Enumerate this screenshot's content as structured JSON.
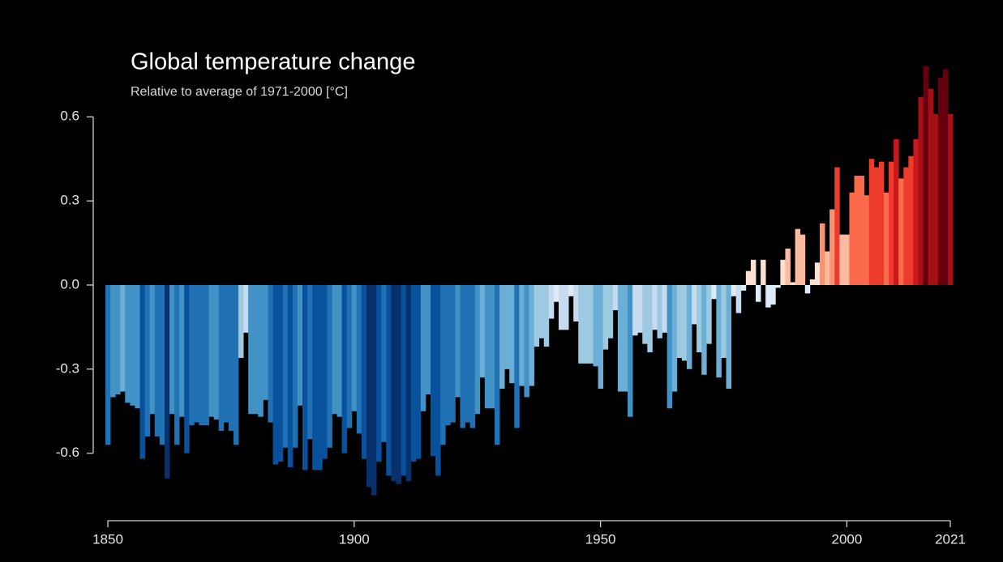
{
  "chart_data": {
    "type": "bar",
    "title": "Global temperature change",
    "subtitle": "Relative to average of 1971-2000  [°C]",
    "x": [
      1850,
      1851,
      1852,
      1853,
      1854,
      1855,
      1856,
      1857,
      1858,
      1859,
      1860,
      1861,
      1862,
      1863,
      1864,
      1865,
      1866,
      1867,
      1868,
      1869,
      1870,
      1871,
      1872,
      1873,
      1874,
      1875,
      1876,
      1877,
      1878,
      1879,
      1880,
      1881,
      1882,
      1883,
      1884,
      1885,
      1886,
      1887,
      1888,
      1889,
      1890,
      1891,
      1892,
      1893,
      1894,
      1895,
      1896,
      1897,
      1898,
      1899,
      1900,
      1901,
      1902,
      1903,
      1904,
      1905,
      1906,
      1907,
      1908,
      1909,
      1910,
      1911,
      1912,
      1913,
      1914,
      1915,
      1916,
      1917,
      1918,
      1919,
      1920,
      1921,
      1922,
      1923,
      1924,
      1925,
      1926,
      1927,
      1928,
      1929,
      1930,
      1931,
      1932,
      1933,
      1934,
      1935,
      1936,
      1937,
      1938,
      1939,
      1940,
      1941,
      1942,
      1943,
      1944,
      1945,
      1946,
      1947,
      1948,
      1949,
      1950,
      1951,
      1952,
      1953,
      1954,
      1955,
      1956,
      1957,
      1958,
      1959,
      1960,
      1961,
      1962,
      1963,
      1964,
      1965,
      1966,
      1967,
      1968,
      1969,
      1970,
      1971,
      1972,
      1973,
      1974,
      1975,
      1976,
      1977,
      1978,
      1979,
      1980,
      1981,
      1982,
      1983,
      1984,
      1985,
      1986,
      1987,
      1988,
      1989,
      1990,
      1991,
      1992,
      1993,
      1994,
      1995,
      1996,
      1997,
      1998,
      1999,
      2000,
      2001,
      2002,
      2003,
      2004,
      2005,
      2006,
      2007,
      2008,
      2009,
      2010,
      2011,
      2012,
      2013,
      2014,
      2015,
      2016,
      2017,
      2018,
      2019,
      2020,
      2021
    ],
    "values": [
      -0.57,
      -0.4,
      -0.39,
      -0.38,
      -0.42,
      -0.43,
      -0.44,
      -0.62,
      -0.54,
      -0.46,
      -0.54,
      -0.57,
      -0.69,
      -0.46,
      -0.57,
      -0.47,
      -0.6,
      -0.5,
      -0.49,
      -0.5,
      -0.5,
      -0.47,
      -0.48,
      -0.52,
      -0.49,
      -0.52,
      -0.57,
      -0.26,
      -0.17,
      -0.46,
      -0.46,
      -0.47,
      -0.41,
      -0.49,
      -0.64,
      -0.63,
      -0.58,
      -0.65,
      -0.58,
      -0.43,
      -0.66,
      -0.55,
      -0.66,
      -0.66,
      -0.62,
      -0.58,
      -0.46,
      -0.47,
      -0.6,
      -0.51,
      -0.45,
      -0.53,
      -0.62,
      -0.72,
      -0.75,
      -0.63,
      -0.56,
      -0.68,
      -0.7,
      -0.71,
      -0.68,
      -0.7,
      -0.63,
      -0.62,
      -0.45,
      -0.39,
      -0.61,
      -0.68,
      -0.57,
      -0.5,
      -0.49,
      -0.4,
      -0.51,
      -0.49,
      -0.51,
      -0.46,
      -0.33,
      -0.44,
      -0.44,
      -0.57,
      -0.37,
      -0.3,
      -0.35,
      -0.51,
      -0.36,
      -0.4,
      -0.36,
      -0.22,
      -0.19,
      -0.22,
      -0.12,
      -0.06,
      -0.16,
      -0.16,
      -0.04,
      -0.13,
      -0.28,
      -0.28,
      -0.28,
      -0.29,
      -0.37,
      -0.23,
      -0.19,
      -0.09,
      -0.38,
      -0.38,
      -0.47,
      -0.18,
      -0.17,
      -0.21,
      -0.24,
      -0.16,
      -0.19,
      -0.17,
      -0.44,
      -0.38,
      -0.26,
      -0.27,
      -0.3,
      -0.14,
      -0.24,
      -0.32,
      -0.21,
      -0.05,
      -0.33,
      -0.26,
      -0.37,
      -0.04,
      -0.1,
      -0.02,
      0.05,
      0.09,
      -0.06,
      0.09,
      -0.08,
      -0.07,
      -0.01,
      0.09,
      0.13,
      0.01,
      0.2,
      0.18,
      -0.03,
      0.02,
      0.08,
      0.22,
      0.12,
      0.27,
      0.42,
      0.18,
      0.18,
      0.33,
      0.39,
      0.39,
      0.32,
      0.45,
      0.42,
      0.44,
      0.33,
      0.44,
      0.52,
      0.38,
      0.42,
      0.46,
      0.52,
      0.67,
      0.78,
      0.7,
      0.61,
      0.74,
      0.77,
      0.61
    ],
    "colors": [
      "#08306b",
      "#08519c",
      "#2171b5",
      "#4292c6",
      "#6baed6",
      "#9ecae1",
      "#c6dbef",
      "#deebf7",
      "#fee0d2",
      "#fcbba1",
      "#fc9272",
      "#fb6a4a",
      "#ef3b2c",
      "#cb181d",
      "#a50f15",
      "#67000d"
    ],
    "xlim": [
      1850,
      2021
    ],
    "xticks": [
      1850,
      1900,
      1950,
      2000,
      2021
    ],
    "ylim": [
      -0.78,
      0.8
    ],
    "yticks": [
      0.6,
      0.3,
      {
        "value": 0,
        "label": "0.0"
      },
      -0.3,
      -0.6
    ],
    "grid": false
  }
}
